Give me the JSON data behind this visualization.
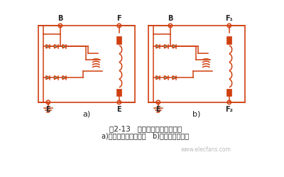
{
  "bg_color": "#ffffff",
  "circuit_color": "#d04010",
  "diode_fill": "#50c8b8",
  "text_color": "#222222",
  "title_line1": "图2-13   交流发电机的搞鐵型式",
  "title_line2": "a)内搞鐵型交流发电机   b)外搞鐵型发电机",
  "label_a": "a)",
  "label_b": "b)",
  "website": "www.elecfans.com",
  "diode_size": 5.5,
  "lw": 1.1
}
